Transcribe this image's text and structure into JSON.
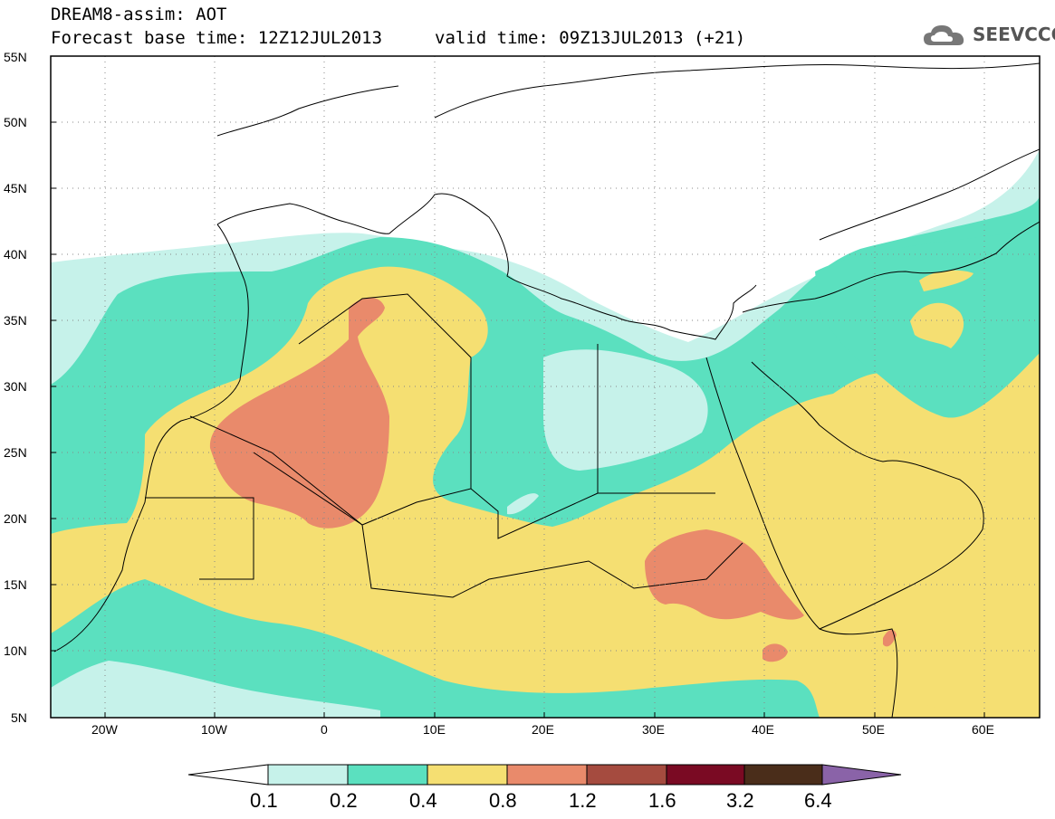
{
  "title": {
    "line1": "DREAM8-assim: AOT",
    "line2": "Forecast base time: 12Z12JUL2013",
    "valid_time": "valid time: 09Z13JUL2013 (+21)"
  },
  "logo": {
    "text": "SEEVCCC",
    "icon": "cloud-icon"
  },
  "map": {
    "lat_labels": [
      "55N",
      "50N",
      "45N",
      "40N",
      "35N",
      "30N",
      "25N",
      "20N",
      "15N",
      "10N",
      "5N"
    ],
    "lon_labels": [
      "20W",
      "10W",
      "0",
      "10E",
      "20E",
      "30E",
      "40E",
      "50E",
      "60E"
    ],
    "extent": {
      "lon_min": -25,
      "lon_max": 65,
      "lat_min": 5,
      "lat_max": 55
    },
    "grid": true
  },
  "colorbar": {
    "levels": [
      "0.1",
      "0.2",
      "0.4",
      "0.8",
      "1.2",
      "1.6",
      "3.2",
      "6.4"
    ],
    "colors": [
      "#c6f2ea",
      "#5be0bf",
      "#f5df72",
      "#e98a6b",
      "#a54b3f",
      "#7a0a23",
      "#4a2d1a",
      "#8a63a8"
    ]
  }
}
